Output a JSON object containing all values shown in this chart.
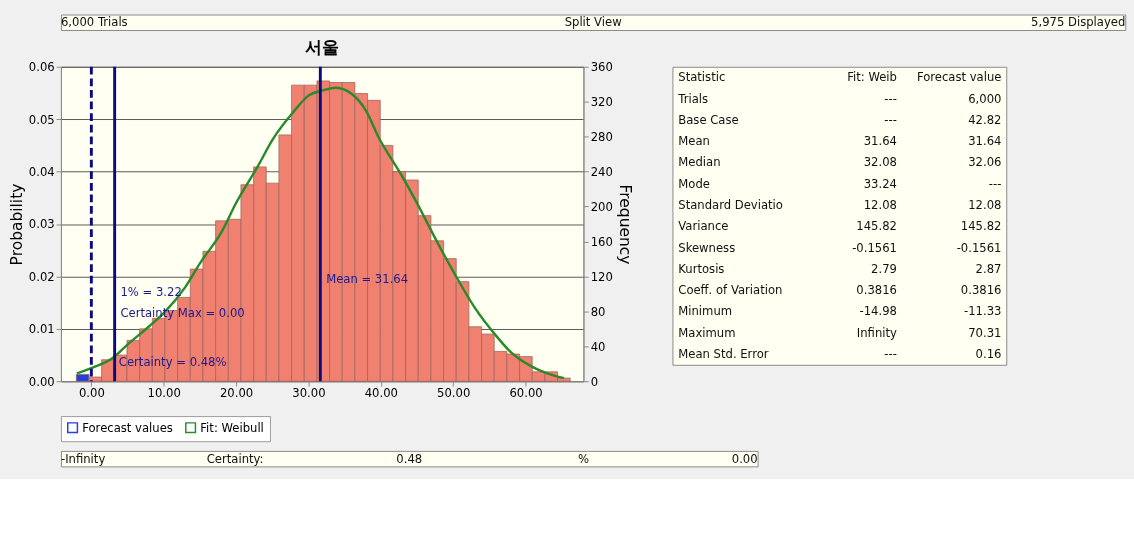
{
  "chart_data": [
    {
      "type": "histogram",
      "title": "서울",
      "ylabel": "Probability",
      "y2label": "Frequency",
      "bins": [
        -2.08,
        -0.33,
        1.42,
        3.17,
        4.92,
        6.67,
        8.42,
        10.17,
        11.92,
        13.67,
        15.42,
        17.17,
        18.92,
        20.67,
        22.42,
        24.17,
        25.92,
        27.67,
        29.42,
        31.17,
        32.92,
        34.67,
        36.42,
        38.17,
        39.92,
        41.67,
        43.42,
        45.17,
        46.92,
        48.67,
        50.42,
        52.17,
        53.92,
        55.67,
        57.42,
        59.17,
        60.92,
        62.67,
        64.42,
        66.17
      ],
      "series": [
        {
          "name": "Forecast values",
          "color": "#2040e0",
          "values": [
            0.0013,
            0.0008,
            0.0041,
            0.005,
            0.0078,
            0.01,
            0.012,
            0.0135,
            0.016,
            0.0214,
            0.0248,
            0.0306,
            0.0309,
            0.0375,
            0.0409,
            0.0378,
            0.047,
            0.0565,
            0.0565,
            0.0573,
            0.057,
            0.057,
            0.0549,
            0.0536,
            0.045,
            0.04,
            0.0384,
            0.0316,
            0.0268,
            0.0234,
            0.019,
            0.0104,
            0.009,
            0.0057,
            0.0052,
            0.0047,
            0.0018,
            0.0018,
            0.0006
          ],
          "colors": [
            "#2040e0",
            "#f08070",
            "#f08070",
            "#f08070",
            "#f08070",
            "#f08070",
            "#f08070",
            "#f08070",
            "#f08070",
            "#f08070",
            "#f08070",
            "#f08070",
            "#f08070",
            "#f08070",
            "#f08070",
            "#f08070",
            "#f08070",
            "#f08070",
            "#f08070",
            "#f08070",
            "#f08070",
            "#f08070",
            "#f08070",
            "#f08070",
            "#f08070",
            "#f08070",
            "#f08070",
            "#f08070",
            "#f08070",
            "#f08070",
            "#f08070",
            "#f08070",
            "#f08070",
            "#f08070",
            "#f08070",
            "#f08070",
            "#f08070",
            "#f08070",
            "#f08070"
          ]
        },
        {
          "name": "Fit: Weibull",
          "type": "line",
          "color": "#2a8a2a",
          "x": [
            -2,
            0,
            3,
            5,
            8,
            10,
            13,
            15,
            18,
            20,
            23,
            25,
            28,
            30,
            32,
            33.8,
            36,
            38,
            39.6,
            43,
            45,
            48,
            50.2,
            53,
            55.8,
            58,
            61,
            63,
            65.3
          ],
          "values": [
            0.0015,
            0.0025,
            0.0045,
            0.007,
            0.0105,
            0.013,
            0.018,
            0.0225,
            0.0285,
            0.034,
            0.041,
            0.046,
            0.0515,
            0.0545,
            0.0555,
            0.056,
            0.0548,
            0.0515,
            0.0468,
            0.039,
            0.034,
            0.026,
            0.0205,
            0.014,
            0.0089,
            0.0055,
            0.0027,
            0.0015,
            0.0006
          ]
        }
      ],
      "xlim": [
        -4.2,
        68
      ],
      "xticks": [
        {
          "value": 0,
          "label": "0.00"
        },
        {
          "value": 10,
          "label": "10.00"
        },
        {
          "value": 20,
          "label": "20.00"
        },
        {
          "value": 30,
          "label": "30.00"
        },
        {
          "value": 40,
          "label": "40.00"
        },
        {
          "value": 50,
          "label": "50.00"
        },
        {
          "value": 60,
          "label": "60.00"
        }
      ],
      "ylim": [
        0,
        0.06
      ],
      "yticks": [
        {
          "value": 0,
          "label": "0.00"
        },
        0.01,
        0.02,
        0.03,
        0.04,
        0.05,
        0.06
      ],
      "y2lim": [
        0,
        360
      ],
      "y2ticks": [
        0,
        40,
        80,
        120,
        160,
        200,
        240,
        280,
        320,
        360
      ],
      "ref_lines": [
        {
          "axis": "x",
          "value": 0,
          "label": "Certainty Max = 0.00",
          "color": "#0a0a80",
          "line_style": "dashed"
        },
        {
          "axis": "x",
          "value": 3.22,
          "label": "1% = 3.22",
          "color": "#0a0a80",
          "line_style": "solid"
        },
        {
          "axis": "x",
          "value": 31.64,
          "label": "Mean = 31.64",
          "color": "#0a0a80",
          "line_style": "solid"
        }
      ],
      "annotations": [
        "6,000 Trials",
        "Split View",
        "5,975 Displayed",
        "Certainty = 0.48%",
        "-Infinity",
        "Certainty:",
        "0.48",
        "%",
        "0.00"
      ],
      "grid": "y",
      "legend": "bottom"
    },
    {
      "type": "other",
      "annotations": [
        "Statistic",
        "Fit: Weib",
        "Forecast value",
        "Trials",
        "---",
        "6,000",
        "Base Case",
        "---",
        "42.82",
        "Mean",
        "31.64",
        "31.64",
        "Median",
        "32.08",
        "32.06",
        "Mode",
        "33.24",
        "---",
        "Standard Deviatio",
        "12.08",
        "12.08",
        "Variance",
        "145.82",
        "145.82",
        "Skewness",
        "-0.1561",
        "-0.1561",
        "Kurtosis",
        "2.79",
        "2.87",
        "Coeff. of Variation",
        "0.3816",
        "0.3816",
        "Minimum",
        "-14.98",
        "-11.33",
        "Maximum",
        "Infinity",
        "70.31",
        "Mean Std. Error",
        "---",
        "0.16"
      ]
    }
  ]
}
